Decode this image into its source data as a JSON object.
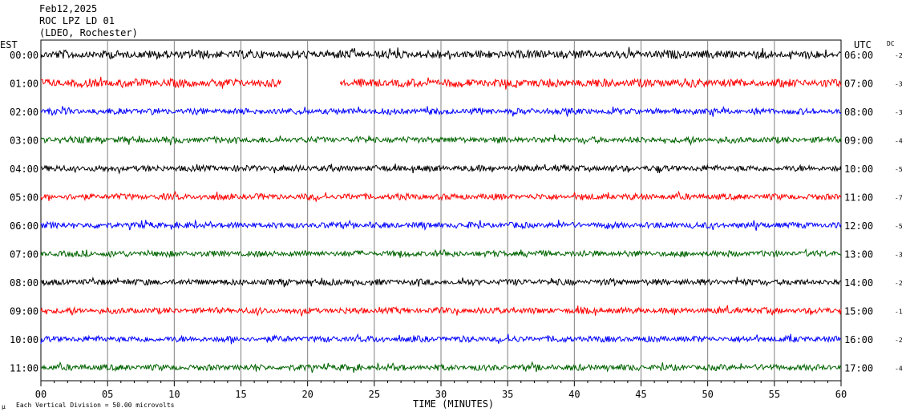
{
  "header": {
    "date": "Feb12,2025",
    "station": "ROC LPZ LD 01",
    "network": "(LDEO, Rochester)"
  },
  "labels": {
    "left_zone": "EST",
    "right_zone": "UTC",
    "dc": "DC",
    "xlabel": "TIME (MINUTES)",
    "scale_note": "Each Vertical Division =   50.00 microvolts",
    "corner_mark": "μ"
  },
  "colors": {
    "black": "#000000",
    "red": "#ff0000",
    "blue": "#0000ff",
    "green": "#006400",
    "grid": "#808080"
  },
  "chart_data": {
    "type": "line",
    "title": "ROC LPZ LD 01",
    "xlabel": "TIME (MINUTES)",
    "xlim": [
      0,
      60
    ],
    "x_ticks": [
      "00",
      "05",
      "10",
      "15",
      "20",
      "25",
      "30",
      "35",
      "40",
      "45",
      "50",
      "55",
      "60"
    ],
    "grid": "vertical every 5 minutes",
    "rows": [
      {
        "est": "00:00",
        "utc": "06:00",
        "dc": "-2",
        "color": "#000000",
        "gap": null
      },
      {
        "est": "01:00",
        "utc": "07:00",
        "dc": "-3",
        "color": "#ff0000",
        "gap": [
          18.0,
          22.4
        ]
      },
      {
        "est": "02:00",
        "utc": "08:00",
        "dc": "-3",
        "color": "#0000ff",
        "gap": null
      },
      {
        "est": "03:00",
        "utc": "09:00",
        "dc": "-4",
        "color": "#006400",
        "gap": null
      },
      {
        "est": "04:00",
        "utc": "10:00",
        "dc": "-5",
        "color": "#000000",
        "gap": null
      },
      {
        "est": "05:00",
        "utc": "11:00",
        "dc": "-7",
        "color": "#ff0000",
        "gap": null
      },
      {
        "est": "06:00",
        "utc": "12:00",
        "dc": "-5",
        "color": "#0000ff",
        "gap": null
      },
      {
        "est": "07:00",
        "utc": "13:00",
        "dc": "-3",
        "color": "#006400",
        "gap": null
      },
      {
        "est": "08:00",
        "utc": "14:00",
        "dc": "-2",
        "color": "#000000",
        "gap": null
      },
      {
        "est": "09:00",
        "utc": "15:00",
        "dc": "-1",
        "color": "#ff0000",
        "gap": null
      },
      {
        "est": "10:00",
        "utc": "16:00",
        "dc": "-2",
        "color": "#0000ff",
        "gap": null
      },
      {
        "est": "11:00",
        "utc": "17:00",
        "dc": "-4",
        "color": "#006400",
        "gap": null
      }
    ]
  }
}
